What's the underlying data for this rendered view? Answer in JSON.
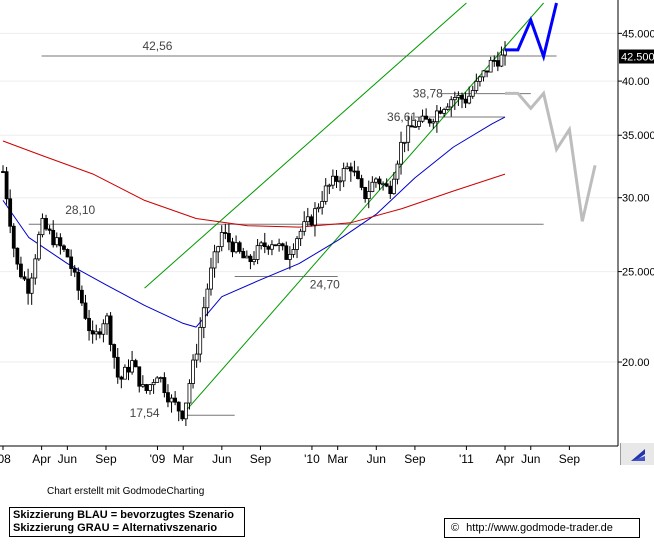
{
  "chart_data": {
    "type": "candlestick",
    "title": "",
    "xlabel": "",
    "ylabel": "",
    "ylim": [
      16.5,
      48.5
    ],
    "y_scale": "log",
    "x_range": [
      "2008-01",
      "2011-12"
    ],
    "x_ticks": [
      "'08",
      "Apr",
      "Jun",
      "Sep",
      "'09",
      "Mar",
      "Jun",
      "Sep",
      "'10",
      "Mar",
      "Jun",
      "Sep",
      "'11",
      "Apr",
      "Jun",
      "Sep"
    ],
    "y_ticks": [
      "20.00",
      "25.000",
      "30.00",
      "35.000",
      "40.00",
      "45.000"
    ],
    "current_value": "42.500",
    "price_path": [
      [
        "2008-01",
        32.0
      ],
      [
        "2008-02",
        25.5
      ],
      [
        "2008-03",
        24.0
      ],
      [
        "2008-04",
        28.1
      ],
      [
        "2008-05",
        27.0
      ],
      [
        "2008-06",
        26.0
      ],
      [
        "2008-07",
        23.5
      ],
      [
        "2008-08",
        21.0
      ],
      [
        "2008-09",
        22.5
      ],
      [
        "2008-10",
        19.0
      ],
      [
        "2008-11",
        20.0
      ],
      [
        "2008-12",
        18.5
      ],
      [
        "2009-01",
        19.5
      ],
      [
        "2009-02",
        18.2
      ],
      [
        "2009-03",
        17.6
      ],
      [
        "2009-04",
        20.5
      ],
      [
        "2009-05",
        24.5
      ],
      [
        "2009-06",
        27.5
      ],
      [
        "2009-07",
        26.5
      ],
      [
        "2009-08",
        25.5
      ],
      [
        "2009-09",
        26.5
      ],
      [
        "2009-10",
        27.0
      ],
      [
        "2009-11",
        26.0
      ],
      [
        "2009-12",
        27.5
      ],
      [
        "2010-01",
        28.5
      ],
      [
        "2010-02",
        30.5
      ],
      [
        "2010-03",
        31.5
      ],
      [
        "2010-04",
        32.5
      ],
      [
        "2010-05",
        30.0
      ],
      [
        "2010-06",
        31.5
      ],
      [
        "2010-07",
        30.5
      ],
      [
        "2010-08",
        34.5
      ],
      [
        "2010-09",
        36.0
      ],
      [
        "2010-10",
        36.2
      ],
      [
        "2010-11",
        37.5
      ],
      [
        "2010-12",
        38.5
      ],
      [
        "2011-01",
        38.2
      ],
      [
        "2011-02",
        40.0
      ],
      [
        "2011-03",
        42.0
      ],
      [
        "2011-04",
        42.5
      ]
    ],
    "moving_averages": [
      {
        "color": "#0000cc",
        "points": [
          [
            "2008-01",
            29.8
          ],
          [
            "2008-03",
            27.2
          ],
          [
            "2008-06",
            25.5
          ],
          [
            "2008-09",
            24.2
          ],
          [
            "2008-12",
            23.0
          ],
          [
            "2009-03",
            22.0
          ],
          [
            "2009-04",
            21.8
          ],
          [
            "2009-06",
            23.5
          ],
          [
            "2009-09",
            24.5
          ],
          [
            "2009-12",
            25.5
          ],
          [
            "2010-03",
            27.0
          ],
          [
            "2010-06",
            28.8
          ],
          [
            "2010-09",
            31.5
          ],
          [
            "2010-12",
            34.0
          ],
          [
            "2011-03",
            36.0
          ],
          [
            "2011-04",
            36.6
          ]
        ]
      },
      {
        "color": "#cc0000",
        "points": [
          [
            "2008-01",
            34.5
          ],
          [
            "2008-04",
            33.3
          ],
          [
            "2008-08",
            31.8
          ],
          [
            "2008-12",
            29.8
          ],
          [
            "2009-04",
            28.5
          ],
          [
            "2009-08",
            28.0
          ],
          [
            "2009-12",
            27.9
          ],
          [
            "2010-04",
            28.2
          ],
          [
            "2010-08",
            29.2
          ],
          [
            "2010-12",
            30.5
          ],
          [
            "2011-04",
            31.8
          ]
        ]
      }
    ],
    "channel_lines": [
      {
        "color": "#009900",
        "points": [
          [
            "2008-12",
            24.0
          ],
          [
            "2011-01",
            48.5
          ]
        ]
      },
      {
        "color": "#009900",
        "points": [
          [
            "2009-03",
            17.6
          ],
          [
            "2011-07",
            48.5
          ]
        ]
      }
    ],
    "horizontal_levels": [
      {
        "label": "42,56",
        "value": 42.56,
        "from": "2008-04",
        "to": "2011-08"
      },
      {
        "label": "28,10",
        "value": 28.1,
        "from": "2008-03",
        "to": "2011-07"
      },
      {
        "label": "24,70",
        "value": 24.7,
        "from": "2009-07",
        "to": "2010-03"
      },
      {
        "label": "38,78",
        "value": 38.78,
        "from": "2010-11",
        "to": "2011-06"
      },
      {
        "label": "36,61",
        "value": 36.61,
        "from": "2010-09",
        "to": "2011-04"
      },
      {
        "label": "17,54",
        "value": 17.54,
        "from": "2009-03",
        "to": "2009-07"
      }
    ],
    "scenarios": [
      {
        "name": "bevorzugtes Szenario",
        "color": "#0000ff",
        "points": [
          [
            "2011-04",
            43.2
          ],
          [
            "2011-05",
            43.2
          ],
          [
            "2011-06",
            46.5
          ],
          [
            "2011-07",
            42.5
          ],
          [
            "2011-08",
            48.5
          ]
        ]
      },
      {
        "name": "Alternativszenario",
        "color": "#bdbdbd",
        "points": [
          [
            "2011-04",
            38.8
          ],
          [
            "2011-05",
            38.8
          ],
          [
            "2011-06",
            37.4
          ],
          [
            "2011-07",
            38.8
          ],
          [
            "2011-08",
            33.8
          ],
          [
            "2011-09",
            35.5
          ],
          [
            "2011-10",
            28.3
          ],
          [
            "2011-11",
            32.5
          ]
        ]
      }
    ]
  },
  "footer": {
    "credit": "Chart erstellt mit GodmodeCharting",
    "legend_blue": "Skizzierung BLAU = bevorzugtes Szenario",
    "legend_gray": "Skizzierung GRAU = Alternativszenario",
    "copyright_symbol": "©",
    "url": "http://www.godmode-trader.de"
  },
  "scroll_icon": "arrow-down-left-icon"
}
